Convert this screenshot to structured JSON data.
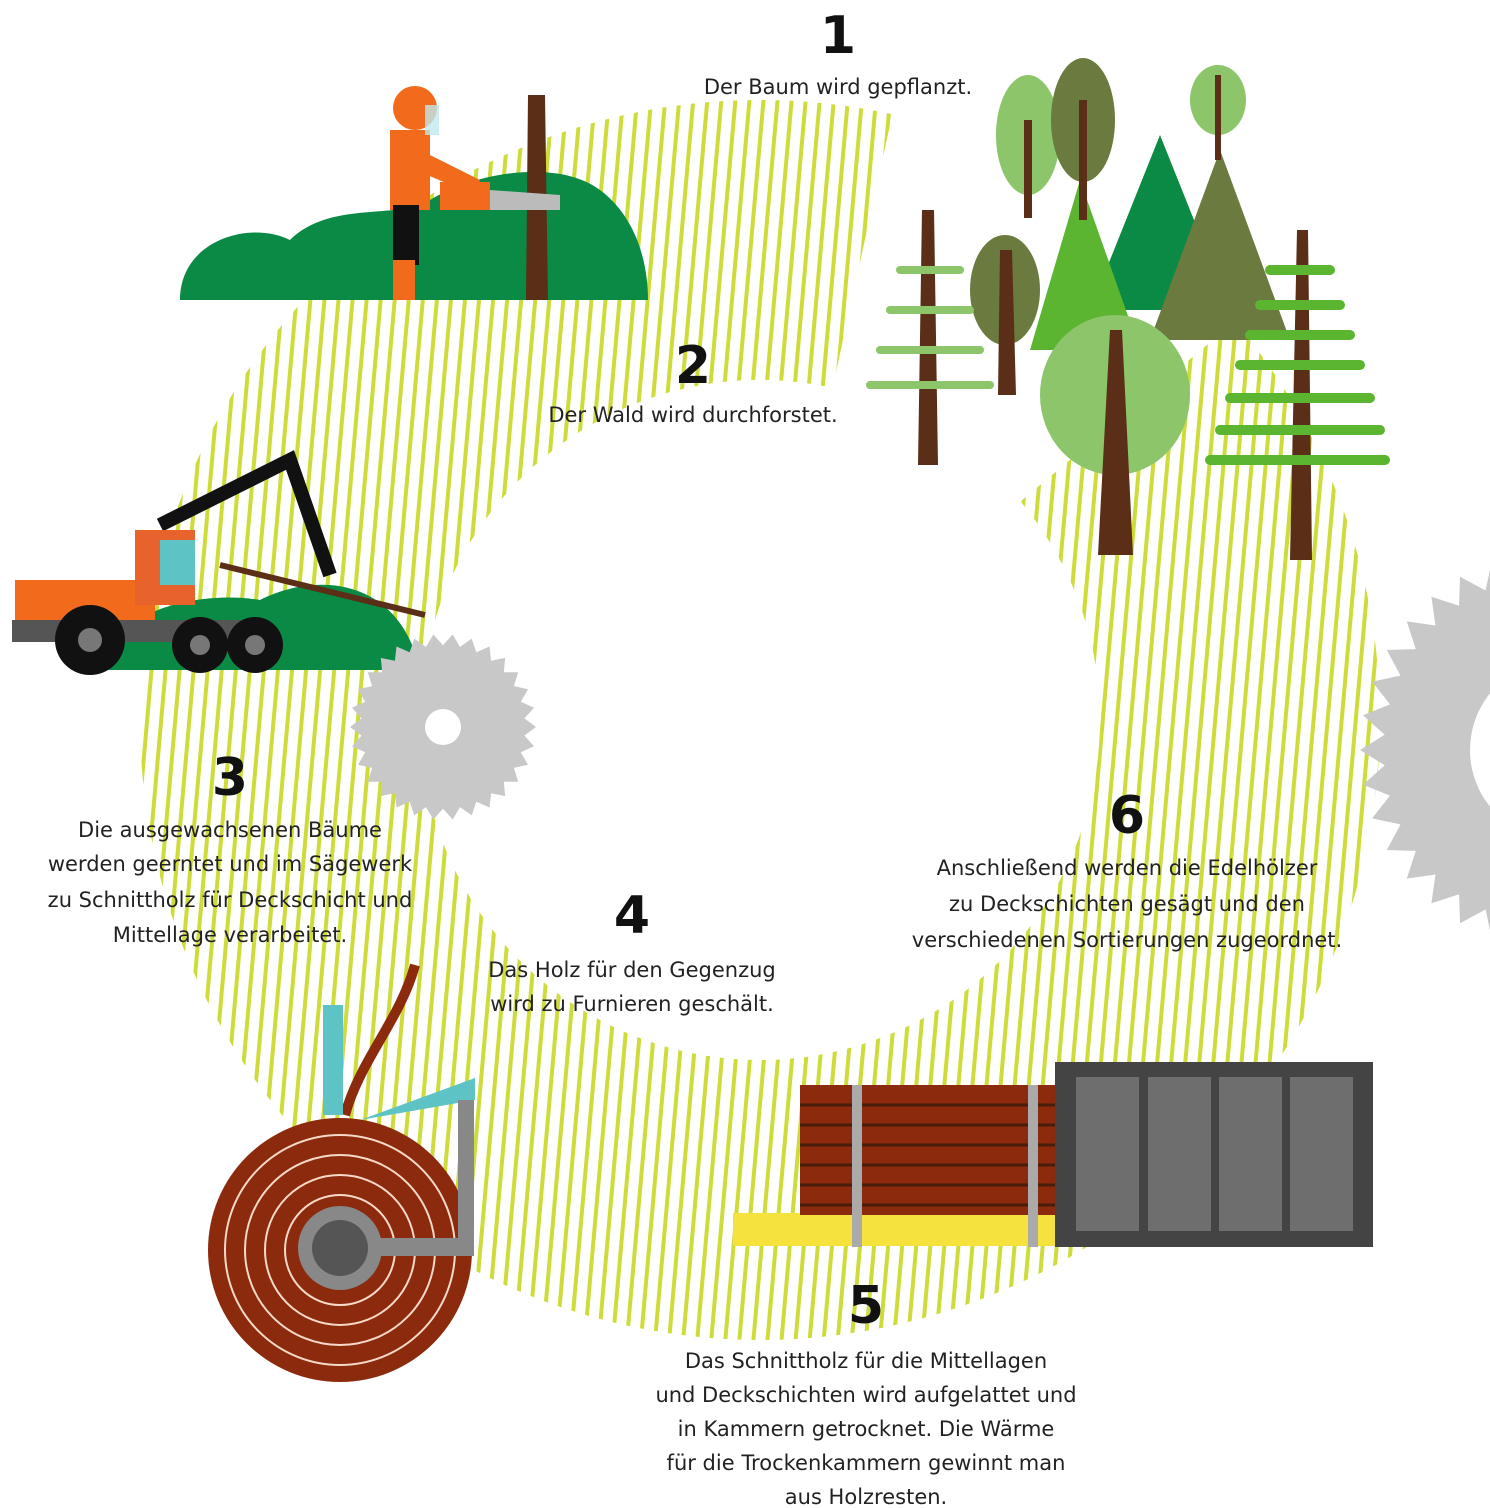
{
  "steps": [
    {
      "number": 1,
      "lines": [
        "Der Baum wird gepflanzt."
      ]
    },
    {
      "number": 2,
      "lines": [
        "Der Wald wird durchforstet."
      ]
    },
    {
      "number": 3,
      "lines": [
        "Die ausgewachsenen Bäume",
        "werden geerntet und im Sägewerk",
        "zu Schnittholz für Deckschicht und",
        "Mittellage verarbeitet."
      ]
    },
    {
      "number": 4,
      "lines": [
        "Das Holz für den Gegenzug",
        "wird zu Furnieren geschält."
      ]
    },
    {
      "number": 5,
      "lines": [
        "Das Schnittholz für die Mittellagen",
        "und Deckschichten wird aufgelattet und",
        "in Kammern getrocknet. Die Wärme",
        "für die Trockenkammern gewinnt man",
        "aus Holzresten."
      ]
    },
    {
      "number": 6,
      "lines": [
        "Anschließend werden die Edelhölzer",
        "zu Deckschichten gesägt und den",
        "verschiedenen Sortierungen zugeordnet."
      ]
    }
  ]
}
